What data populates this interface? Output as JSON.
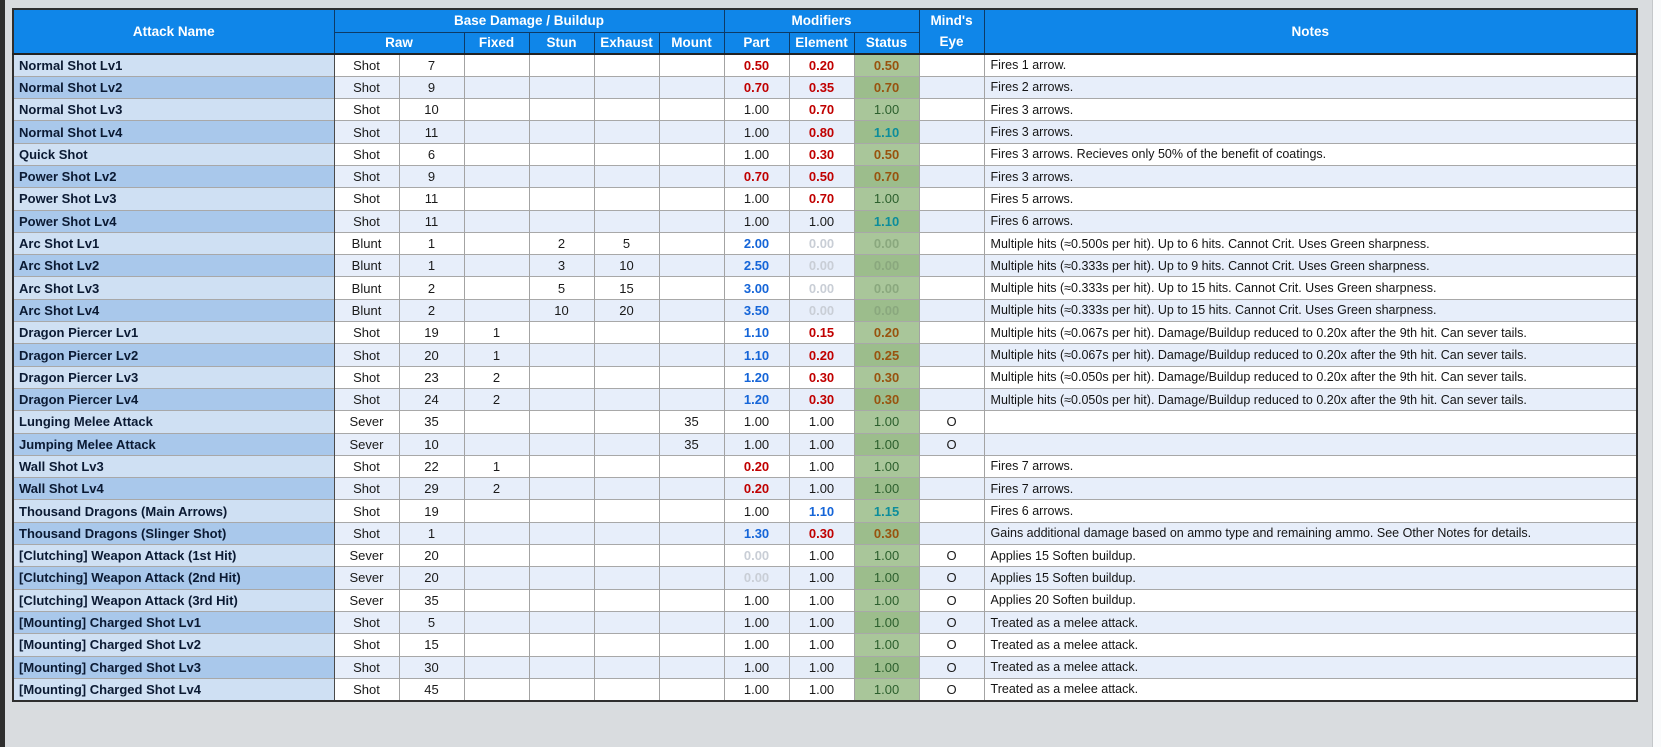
{
  "colors": {
    "header_blue": "#0f86e9",
    "name_light": "#cfe0f3",
    "name_dark": "#a9c8eb",
    "row_light": "#ffffff",
    "row_dark": "#e7eefa",
    "status_bg_light": "#a9c69a",
    "status_bg_dark": "#9cbd8c",
    "red": "#c00000",
    "blue": "#1565d8",
    "teal": "#0d8d9b",
    "brown": "#98530e",
    "green_ok": "#2c5f2d",
    "zero_gray": "#c9ced6",
    "status_zero": "#8aa87e",
    "page_bg": "#d9dcdf",
    "edge_dark": "#2e2e2e"
  },
  "table": {
    "headers": {
      "attack_name": "Attack Name",
      "base_damage_group": "Base Damage / Buildup",
      "modifiers_group": "Modifiers",
      "minds_eye_line1": "Mind's",
      "minds_eye_line2": "Eye",
      "notes": "Notes",
      "sub": [
        "Raw",
        "Fixed",
        "Stun",
        "Exhaust",
        "Mount",
        "Part",
        "Element",
        "Status"
      ]
    },
    "rows": [
      {
        "name": "Normal Shot Lv1",
        "type": "Shot",
        "raw": "7",
        "fixed": "",
        "stun": "",
        "exhaust": "",
        "mount": "",
        "part": "0.50",
        "element": "0.20",
        "status": "0.50",
        "eye": "",
        "notes": "Fires 1 arrow."
      },
      {
        "name": "Normal Shot Lv2",
        "type": "Shot",
        "raw": "9",
        "fixed": "",
        "stun": "",
        "exhaust": "",
        "mount": "",
        "part": "0.70",
        "element": "0.35",
        "status": "0.70",
        "eye": "",
        "notes": "Fires 2 arrows."
      },
      {
        "name": "Normal Shot Lv3",
        "type": "Shot",
        "raw": "10",
        "fixed": "",
        "stun": "",
        "exhaust": "",
        "mount": "",
        "part": "1.00",
        "element": "0.70",
        "status": "1.00",
        "eye": "",
        "notes": "Fires 3 arrows."
      },
      {
        "name": "Normal Shot Lv4",
        "type": "Shot",
        "raw": "11",
        "fixed": "",
        "stun": "",
        "exhaust": "",
        "mount": "",
        "part": "1.00",
        "element": "0.80",
        "status": "1.10",
        "eye": "",
        "notes": "Fires 3 arrows."
      },
      {
        "name": "Quick Shot",
        "type": "Shot",
        "raw": "6",
        "fixed": "",
        "stun": "",
        "exhaust": "",
        "mount": "",
        "part": "1.00",
        "element": "0.30",
        "status": "0.50",
        "eye": "",
        "notes": "Fires 3 arrows. Recieves only 50% of the benefit of coatings."
      },
      {
        "name": "Power Shot Lv2",
        "type": "Shot",
        "raw": "9",
        "fixed": "",
        "stun": "",
        "exhaust": "",
        "mount": "",
        "part": "0.70",
        "element": "0.50",
        "status": "0.70",
        "eye": "",
        "notes": "Fires 3 arrows."
      },
      {
        "name": "Power Shot Lv3",
        "type": "Shot",
        "raw": "11",
        "fixed": "",
        "stun": "",
        "exhaust": "",
        "mount": "",
        "part": "1.00",
        "element": "0.70",
        "status": "1.00",
        "eye": "",
        "notes": "Fires 5 arrows."
      },
      {
        "name": "Power Shot Lv4",
        "type": "Shot",
        "raw": "11",
        "fixed": "",
        "stun": "",
        "exhaust": "",
        "mount": "",
        "part": "1.00",
        "element": "1.00",
        "status": "1.10",
        "eye": "",
        "notes": "Fires 6 arrows."
      },
      {
        "name": "Arc Shot Lv1",
        "type": "Blunt",
        "raw": "1",
        "fixed": "",
        "stun": "2",
        "exhaust": "5",
        "mount": "",
        "part": "2.00",
        "element": "0.00",
        "status": "0.00",
        "eye": "",
        "notes": "Multiple hits (≈0.500s per hit). Up to 6 hits. Cannot Crit. Uses Green sharpness."
      },
      {
        "name": "Arc Shot Lv2",
        "type": "Blunt",
        "raw": "1",
        "fixed": "",
        "stun": "3",
        "exhaust": "10",
        "mount": "",
        "part": "2.50",
        "element": "0.00",
        "status": "0.00",
        "eye": "",
        "notes": "Multiple hits (≈0.333s per hit). Up to 9 hits. Cannot Crit. Uses Green sharpness."
      },
      {
        "name": "Arc Shot Lv3",
        "type": "Blunt",
        "raw": "2",
        "fixed": "",
        "stun": "5",
        "exhaust": "15",
        "mount": "",
        "part": "3.00",
        "element": "0.00",
        "status": "0.00",
        "eye": "",
        "notes": "Multiple hits (≈0.333s per hit). Up to 15 hits. Cannot Crit. Uses Green sharpness."
      },
      {
        "name": "Arc Shot Lv4",
        "type": "Blunt",
        "raw": "2",
        "fixed": "",
        "stun": "10",
        "exhaust": "20",
        "mount": "",
        "part": "3.50",
        "element": "0.00",
        "status": "0.00",
        "eye": "",
        "notes": "Multiple hits (≈0.333s per hit). Up to 15 hits. Cannot Crit. Uses Green sharpness."
      },
      {
        "name": "Dragon Piercer Lv1",
        "type": "Shot",
        "raw": "19",
        "fixed": "1",
        "stun": "",
        "exhaust": "",
        "mount": "",
        "part": "1.10",
        "element": "0.15",
        "status": "0.20",
        "eye": "",
        "notes": "Multiple hits (≈0.067s per hit). Damage/Buildup reduced to 0.20x after the 9th hit. Can sever tails."
      },
      {
        "name": "Dragon Piercer Lv2",
        "type": "Shot",
        "raw": "20",
        "fixed": "1",
        "stun": "",
        "exhaust": "",
        "mount": "",
        "part": "1.10",
        "element": "0.20",
        "status": "0.25",
        "eye": "",
        "notes": "Multiple hits (≈0.067s per hit). Damage/Buildup reduced to 0.20x after the 9th hit. Can sever tails."
      },
      {
        "name": "Dragon Piercer Lv3",
        "type": "Shot",
        "raw": "23",
        "fixed": "2",
        "stun": "",
        "exhaust": "",
        "mount": "",
        "part": "1.20",
        "element": "0.30",
        "status": "0.30",
        "eye": "",
        "notes": "Multiple hits (≈0.050s per hit). Damage/Buildup reduced to 0.20x after the 9th hit. Can sever tails."
      },
      {
        "name": "Dragon Piercer Lv4",
        "type": "Shot",
        "raw": "24",
        "fixed": "2",
        "stun": "",
        "exhaust": "",
        "mount": "",
        "part": "1.20",
        "element": "0.30",
        "status": "0.30",
        "eye": "",
        "notes": "Multiple hits (≈0.050s per hit). Damage/Buildup reduced to 0.20x after the 9th hit. Can sever tails."
      },
      {
        "name": "Lunging Melee Attack",
        "type": "Sever",
        "raw": "35",
        "fixed": "",
        "stun": "",
        "exhaust": "",
        "mount": "35",
        "part": "1.00",
        "element": "1.00",
        "status": "1.00",
        "eye": "O",
        "notes": ""
      },
      {
        "name": "Jumping Melee Attack",
        "type": "Sever",
        "raw": "10",
        "fixed": "",
        "stun": "",
        "exhaust": "",
        "mount": "35",
        "part": "1.00",
        "element": "1.00",
        "status": "1.00",
        "eye": "O",
        "notes": ""
      },
      {
        "name": "Wall Shot Lv3",
        "type": "Shot",
        "raw": "22",
        "fixed": "1",
        "stun": "",
        "exhaust": "",
        "mount": "",
        "part": "0.20",
        "element": "1.00",
        "status": "1.00",
        "eye": "",
        "notes": "Fires 7 arrows."
      },
      {
        "name": "Wall Shot Lv4",
        "type": "Shot",
        "raw": "29",
        "fixed": "2",
        "stun": "",
        "exhaust": "",
        "mount": "",
        "part": "0.20",
        "element": "1.00",
        "status": "1.00",
        "eye": "",
        "notes": "Fires 7 arrows."
      },
      {
        "name": "Thousand Dragons (Main Arrows)",
        "type": "Shot",
        "raw": "19",
        "fixed": "",
        "stun": "",
        "exhaust": "",
        "mount": "",
        "part": "1.00",
        "element": "1.10",
        "status": "1.15",
        "eye": "",
        "notes": "Fires 6 arrows."
      },
      {
        "name": "Thousand Dragons (Slinger Shot)",
        "type": "Shot",
        "raw": "1",
        "fixed": "",
        "stun": "",
        "exhaust": "",
        "mount": "",
        "part": "1.30",
        "element": "0.30",
        "status": "0.30",
        "eye": "",
        "notes": "Gains additional damage based on ammo type and remaining ammo. See Other Notes for details."
      },
      {
        "name": "[Clutching] Weapon Attack (1st Hit)",
        "type": "Sever",
        "raw": "20",
        "fixed": "",
        "stun": "",
        "exhaust": "",
        "mount": "",
        "part": "0.00",
        "element": "1.00",
        "status": "1.00",
        "eye": "O",
        "notes": "Applies 15 Soften buildup."
      },
      {
        "name": "[Clutching] Weapon Attack (2nd Hit)",
        "type": "Sever",
        "raw": "20",
        "fixed": "",
        "stun": "",
        "exhaust": "",
        "mount": "",
        "part": "0.00",
        "element": "1.00",
        "status": "1.00",
        "eye": "O",
        "notes": "Applies 15 Soften buildup."
      },
      {
        "name": "[Clutching] Weapon Attack (3rd Hit)",
        "type": "Sever",
        "raw": "35",
        "fixed": "",
        "stun": "",
        "exhaust": "",
        "mount": "",
        "part": "1.00",
        "element": "1.00",
        "status": "1.00",
        "eye": "O",
        "notes": "Applies 20 Soften buildup."
      },
      {
        "name": "[Mounting] Charged Shot Lv1",
        "type": "Shot",
        "raw": "5",
        "fixed": "",
        "stun": "",
        "exhaust": "",
        "mount": "",
        "part": "1.00",
        "element": "1.00",
        "status": "1.00",
        "eye": "O",
        "notes": "Treated as a melee attack."
      },
      {
        "name": "[Mounting] Charged Shot Lv2",
        "type": "Shot",
        "raw": "15",
        "fixed": "",
        "stun": "",
        "exhaust": "",
        "mount": "",
        "part": "1.00",
        "element": "1.00",
        "status": "1.00",
        "eye": "O",
        "notes": "Treated as a melee attack."
      },
      {
        "name": "[Mounting] Charged Shot Lv3",
        "type": "Shot",
        "raw": "30",
        "fixed": "",
        "stun": "",
        "exhaust": "",
        "mount": "",
        "part": "1.00",
        "element": "1.00",
        "status": "1.00",
        "eye": "O",
        "notes": "Treated as a melee attack."
      },
      {
        "name": "[Mounting] Charged Shot Lv4",
        "type": "Shot",
        "raw": "45",
        "fixed": "",
        "stun": "",
        "exhaust": "",
        "mount": "",
        "part": "1.00",
        "element": "1.00",
        "status": "1.00",
        "eye": "O",
        "notes": "Treated as a melee attack."
      }
    ]
  }
}
